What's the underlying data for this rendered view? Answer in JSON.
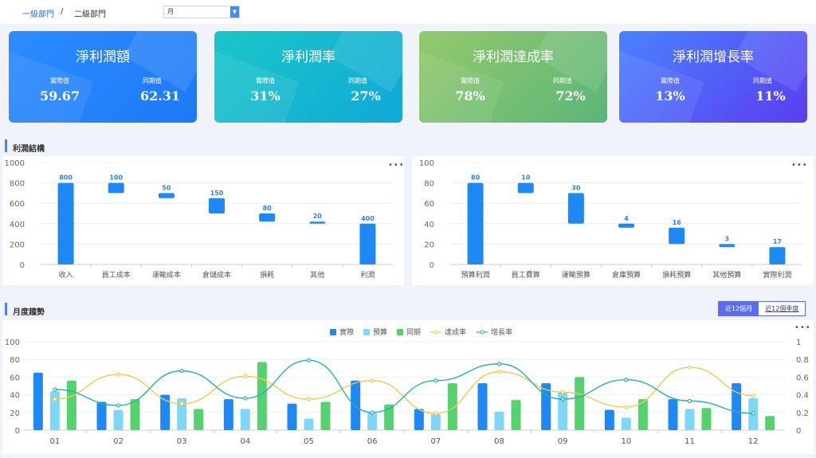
{
  "header": {
    "breadcrumb_1": "一級部門",
    "separator": "/",
    "breadcrumb_2": "二級部門",
    "period_select": "月"
  },
  "kpi_cards": [
    {
      "title": "淨利潤額",
      "actual_label": "實際值",
      "actual": "59.67",
      "prev_label": "同期值",
      "prev": "62.31"
    },
    {
      "title": "淨利潤率",
      "actual_label": "實際值",
      "actual": "31%",
      "prev_label": "同期值",
      "prev": "27%"
    },
    {
      "title": "淨利潤達成率",
      "actual_label": "實際值",
      "actual": "78%",
      "prev_label": "同期值",
      "prev": "72%"
    },
    {
      "title": "淨利潤增長率",
      "actual_label": "實際值",
      "actual": "13%",
      "prev_label": "同期值",
      "prev": "11%"
    }
  ],
  "colors": {
    "bar_blue": "#1e88f5",
    "bar_light": "#7fd6f7",
    "bar_green": "#55d26f",
    "line_yellow": "#f2c94c",
    "line_teal": "#1fb5a8",
    "label_blue": "#2f80ed"
  },
  "profit_section": {
    "title": "利潤結構",
    "more_icon": "•••"
  },
  "trend_section": {
    "title": "月度趨勢",
    "tab_12_months": "近12個月",
    "tab_12_quarters": "近12個季度",
    "more_icon": "•••"
  },
  "chart_data": [
    {
      "type": "bar",
      "subtype": "waterfall",
      "categories": [
        "收入",
        "員工成本",
        "運輸成本",
        "倉儲成本",
        "損耗",
        "其他",
        "利潤"
      ],
      "values": [
        800,
        100,
        50,
        150,
        80,
        20,
        400
      ],
      "bases": [
        0,
        700,
        650,
        500,
        420,
        400,
        0
      ],
      "ylim": [
        0,
        1000
      ],
      "yticks": [
        0,
        200,
        400,
        600,
        800,
        1000
      ]
    },
    {
      "type": "bar",
      "subtype": "waterfall",
      "categories": [
        "預算利潤",
        "員工費算",
        "運輸預算",
        "倉庫預算",
        "損耗預算",
        "其他預算",
        "實際利潤"
      ],
      "values": [
        80,
        10,
        30,
        4,
        16,
        3,
        17
      ],
      "bases": [
        0,
        70,
        40,
        36,
        20,
        17,
        0
      ],
      "ylim": [
        0,
        100
      ],
      "yticks": [
        0,
        20,
        40,
        60,
        80,
        100
      ]
    },
    {
      "type": "bar",
      "subtype": "combo-bar-line",
      "categories": [
        "01",
        "02",
        "03",
        "04",
        "05",
        "06",
        "07",
        "08",
        "09",
        "10",
        "11",
        "12"
      ],
      "series": [
        {
          "name": "實際",
          "type": "bar",
          "axis": "left",
          "values": [
            65,
            32,
            40,
            35,
            30,
            56,
            24,
            53,
            53,
            23,
            35,
            53
          ]
        },
        {
          "name": "預算",
          "type": "bar",
          "axis": "left",
          "values": [
            44,
            23,
            36,
            24,
            13,
            20,
            18,
            21,
            43,
            14,
            24,
            36
          ]
        },
        {
          "name": "同期",
          "type": "bar",
          "axis": "left",
          "values": [
            56,
            35,
            24,
            77,
            32,
            29,
            53,
            34,
            60,
            35,
            25,
            16
          ]
        },
        {
          "name": "達成率",
          "type": "line",
          "axis": "right",
          "values": [
            0.35,
            0.63,
            0.3,
            0.61,
            0.35,
            0.56,
            0.19,
            0.66,
            0.43,
            0.26,
            0.71,
            0.39
          ]
        },
        {
          "name": "增長率",
          "type": "line",
          "axis": "right",
          "values": [
            0.46,
            0.28,
            0.67,
            0.36,
            0.79,
            0.2,
            0.56,
            0.75,
            0.35,
            0.57,
            0.33,
            0.19
          ]
        }
      ],
      "ylim": [
        0,
        100
      ],
      "yticks": [
        0,
        20,
        40,
        60,
        80,
        100
      ],
      "y2lim": [
        0,
        1
      ],
      "y2ticks": [
        0,
        0.2,
        0.4,
        0.6,
        0.8,
        1
      ],
      "legend_position": "top-center"
    }
  ]
}
